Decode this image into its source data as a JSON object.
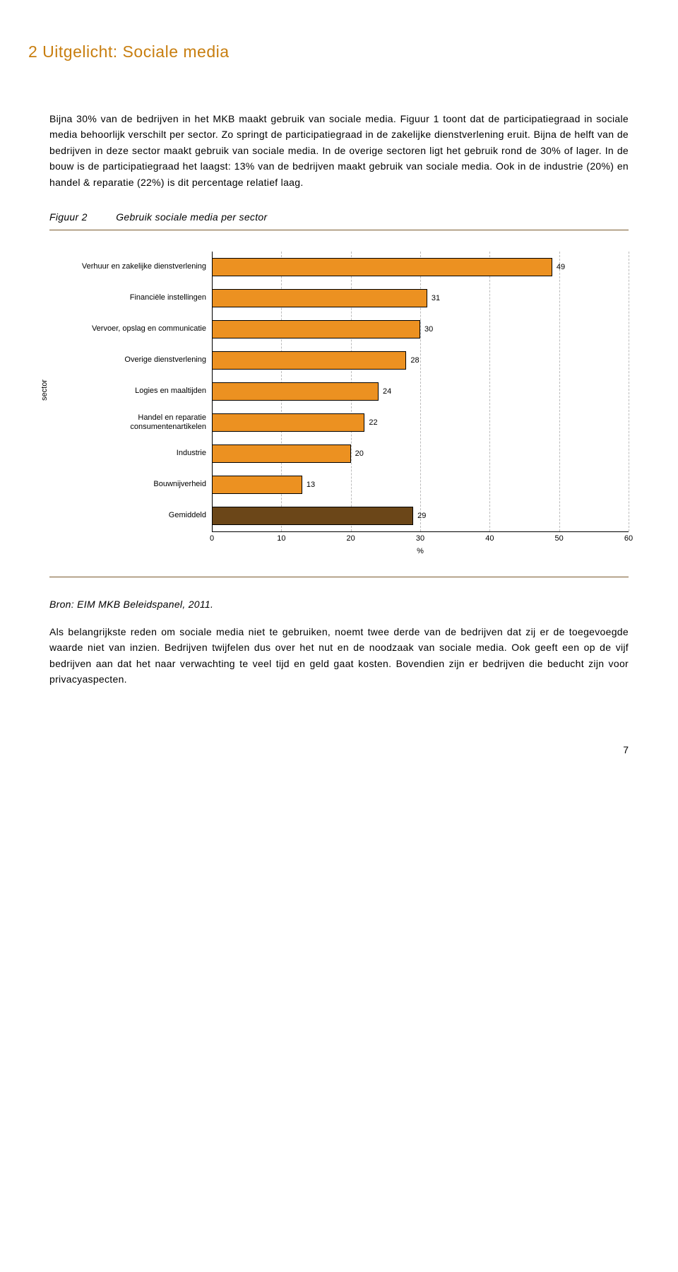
{
  "heading": "2  Uitgelicht: Sociale media",
  "para1": "Bijna 30% van de bedrijven in het MKB maakt gebruik van sociale media. Figuur 1 toont dat de participatiegraad in sociale media behoorlijk verschilt per sector. Zo springt de participatiegraad in de zakelijke dienstverlening eruit. Bijna de helft van de bedrijven in deze sector maakt gebruik van sociale media. In de overige sectoren ligt het gebruik rond de 30% of lager. In de bouw is de participatiegraad het laagst: 13% van de bedrijven maakt gebruik van sociale media. Ook in de industrie (20%) en handel & reparatie (22%) is dit percentage relatief laag.",
  "figure": {
    "label": "Figuur 2",
    "title": "Gebruik sociale media per sector",
    "y_axis_label": "sector",
    "x_axis_label": "%",
    "x_max": 60,
    "x_ticks": [
      0,
      10,
      20,
      30,
      40,
      50,
      60
    ],
    "bars": [
      {
        "label": "Verhuur en zakelijke dienstverlening",
        "value": 49,
        "color": "#ec9121"
      },
      {
        "label": "Financiële instellingen",
        "value": 31,
        "color": "#ec9121"
      },
      {
        "label": "Vervoer, opslag en communicatie",
        "value": 30,
        "color": "#ec9121"
      },
      {
        "label": "Overige dienstverlening",
        "value": 28,
        "color": "#ec9121"
      },
      {
        "label": "Logies en maaltijden",
        "value": 24,
        "color": "#ec9121"
      },
      {
        "label": "Handel en reparatie consumentenartikelen",
        "value": 22,
        "color": "#ec9121"
      },
      {
        "label": "Industrie",
        "value": 20,
        "color": "#ec9121"
      },
      {
        "label": "Bouwnijverheid",
        "value": 13,
        "color": "#ec9121"
      },
      {
        "label": "Gemiddeld",
        "value": 29,
        "color": "#6b4618"
      }
    ],
    "grid_color": "#bbbbbb",
    "border_color": "#000000"
  },
  "source": "Bron: EIM MKB Beleidspanel, 2011.",
  "para2": "Als belangrijkste reden om sociale media niet te gebruiken, noemt twee derde van de bedrijven dat zij er de toegevoegde waarde niet van inzien. Bedrijven twijfelen dus over het nut en de noodzaak van sociale media. Ook geeft een op de vijf bedrijven aan dat het naar verwachting te veel tijd en geld gaat kosten. Bovendien zijn er bedrijven die beducht zijn voor privacyaspecten.",
  "page_num": "7"
}
